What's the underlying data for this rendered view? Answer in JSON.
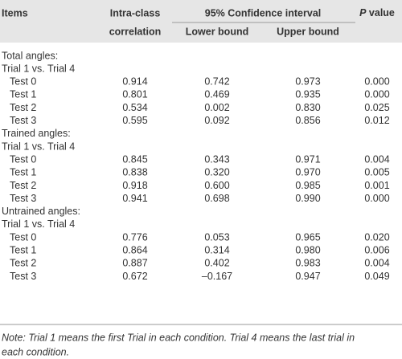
{
  "header": {
    "items": "Items",
    "icc": [
      "Intra-class",
      "correlation"
    ],
    "ci": "95% Confidence interval",
    "lower": "Lower bound",
    "upper": "Upper bound",
    "p": "P",
    "p_rest": "value"
  },
  "groups": [
    {
      "title": "Total angles:",
      "subtitle": "Trial 1 vs. Trial 4",
      "rows": [
        [
          "Test 0",
          "0.914",
          "0.742",
          "0.973",
          "0.000"
        ],
        [
          "Test 1",
          "0.801",
          "0.469",
          "0.935",
          "0.000"
        ],
        [
          "Test 2",
          "0.534",
          "0.002",
          "0.830",
          "0.025"
        ],
        [
          "Test 3",
          "0.595",
          "0.092",
          "0.856",
          "0.012"
        ]
      ]
    },
    {
      "title": "Trained angles:",
      "subtitle": "Trial 1 vs. Trial 4",
      "rows": [
        [
          "Test 0",
          "0.845",
          "0.343",
          "0.971",
          "0.004"
        ],
        [
          "Test 1",
          "0.838",
          "0.320",
          "0.970",
          "0.005"
        ],
        [
          "Test 2",
          "0.918",
          "0.600",
          "0.985",
          "0.001"
        ],
        [
          "Test 3",
          "0.941",
          "0.698",
          "0.990",
          "0.000"
        ]
      ]
    },
    {
      "title": "Untrained angles:",
      "subtitle": "Trial 1 vs. Trial 4",
      "rows": [
        [
          "Test 0",
          "0.776",
          "0.053",
          "0.965",
          "0.020"
        ],
        [
          "Test 1",
          "0.864",
          "0.314",
          "0.980",
          "0.006"
        ],
        [
          "Test 2",
          "0.887",
          "0.402",
          "0.983",
          "0.004"
        ],
        [
          "Test 3",
          "0.672",
          "–0.167",
          "0.947",
          "0.049"
        ]
      ]
    }
  ],
  "note": [
    "Note: Trial 1 means the first Trial in each condition. Trial 4 means the last trial in",
    "each condition."
  ]
}
